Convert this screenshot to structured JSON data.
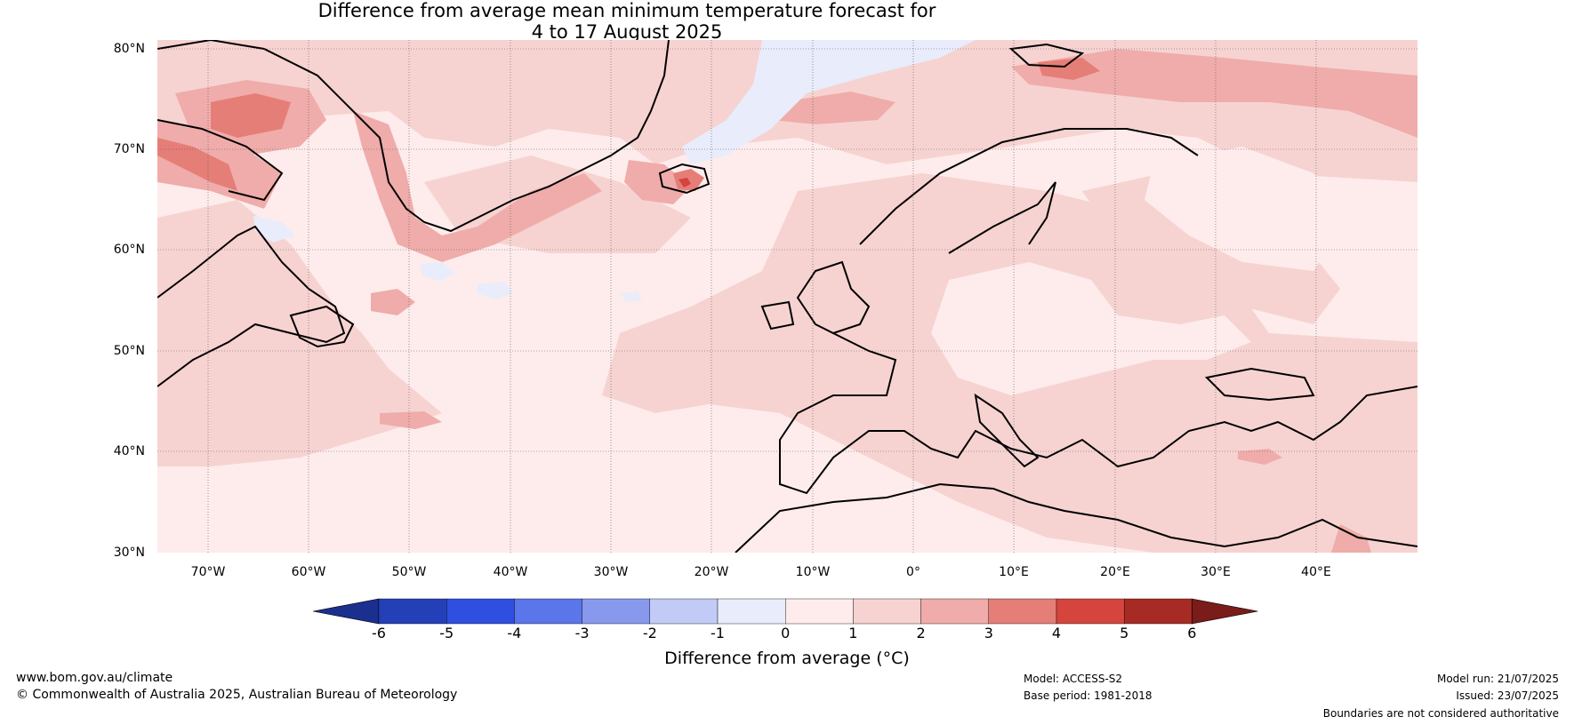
{
  "title": {
    "line1": "Difference from average mean minimum temperature forecast for",
    "line2": "4 to 17 August 2025"
  },
  "map": {
    "region": "North Atlantic and Europe",
    "lon_range": [
      -75,
      50
    ],
    "lat_range": [
      30,
      81
    ],
    "lat_labels": [
      "80°N",
      "70°N",
      "60°N",
      "50°N",
      "40°N",
      "30°N"
    ],
    "lon_labels": [
      "70°W",
      "60°W",
      "50°W",
      "40°W",
      "30°W",
      "20°W",
      "10°W",
      "0°",
      "10°E",
      "20°E",
      "30°E",
      "40°E"
    ],
    "gridlines": true
  },
  "colorbar": {
    "title": "Difference from average (°C)",
    "tick_labels": [
      "-6",
      "-5",
      "-4",
      "-3",
      "-2",
      "-1",
      "0",
      "1",
      "2",
      "3",
      "4",
      "5",
      "6"
    ],
    "colors": [
      "#1b2f8f",
      "#2440b8",
      "#2e4fe0",
      "#5b76ea",
      "#8899ed",
      "#c2cbf5",
      "#e8ecfb",
      "#fdeceb",
      "#f6d3d1",
      "#efacaa",
      "#e57e77",
      "#d5443d",
      "#a82a24",
      "#7a1c19"
    ]
  },
  "footer": {
    "website": "www.bom.gov.au/climate",
    "copyright": "© Commonwealth of Australia 2025, Australian Bureau of Meteorology",
    "model": "Model: ACCESS-S2",
    "base_period": "Base period: 1981-2018",
    "model_run": "Model run: 21/07/2025",
    "issued": "Issued: 23/07/2025",
    "disclaimer": "Boundaries are not considered authoritative"
  }
}
